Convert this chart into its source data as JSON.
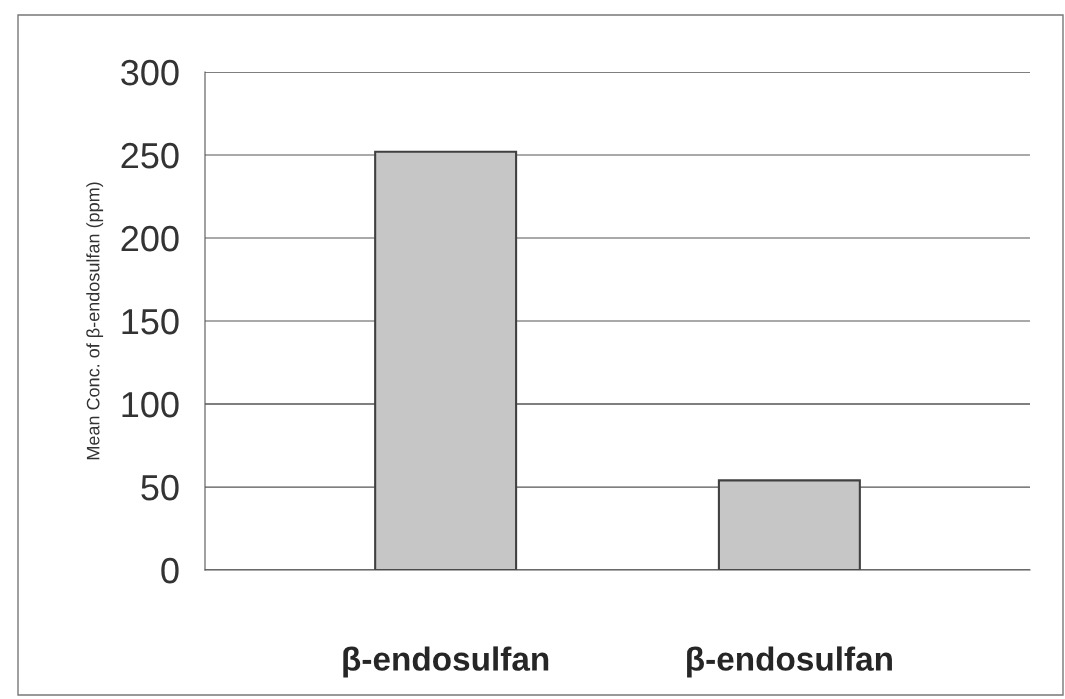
{
  "chart_data": {
    "type": "bar",
    "ylabel": "Mean Conc. of β-endosulfan (ppm)",
    "categories": [
      "β-endosulfan",
      "β-endosulfan"
    ],
    "values": [
      252,
      54
    ],
    "color": "#c6c6c6",
    "ylim": [
      0,
      300
    ],
    "yticks": [
      0,
      50,
      100,
      150,
      200,
      250,
      300
    ],
    "grid": "y"
  }
}
